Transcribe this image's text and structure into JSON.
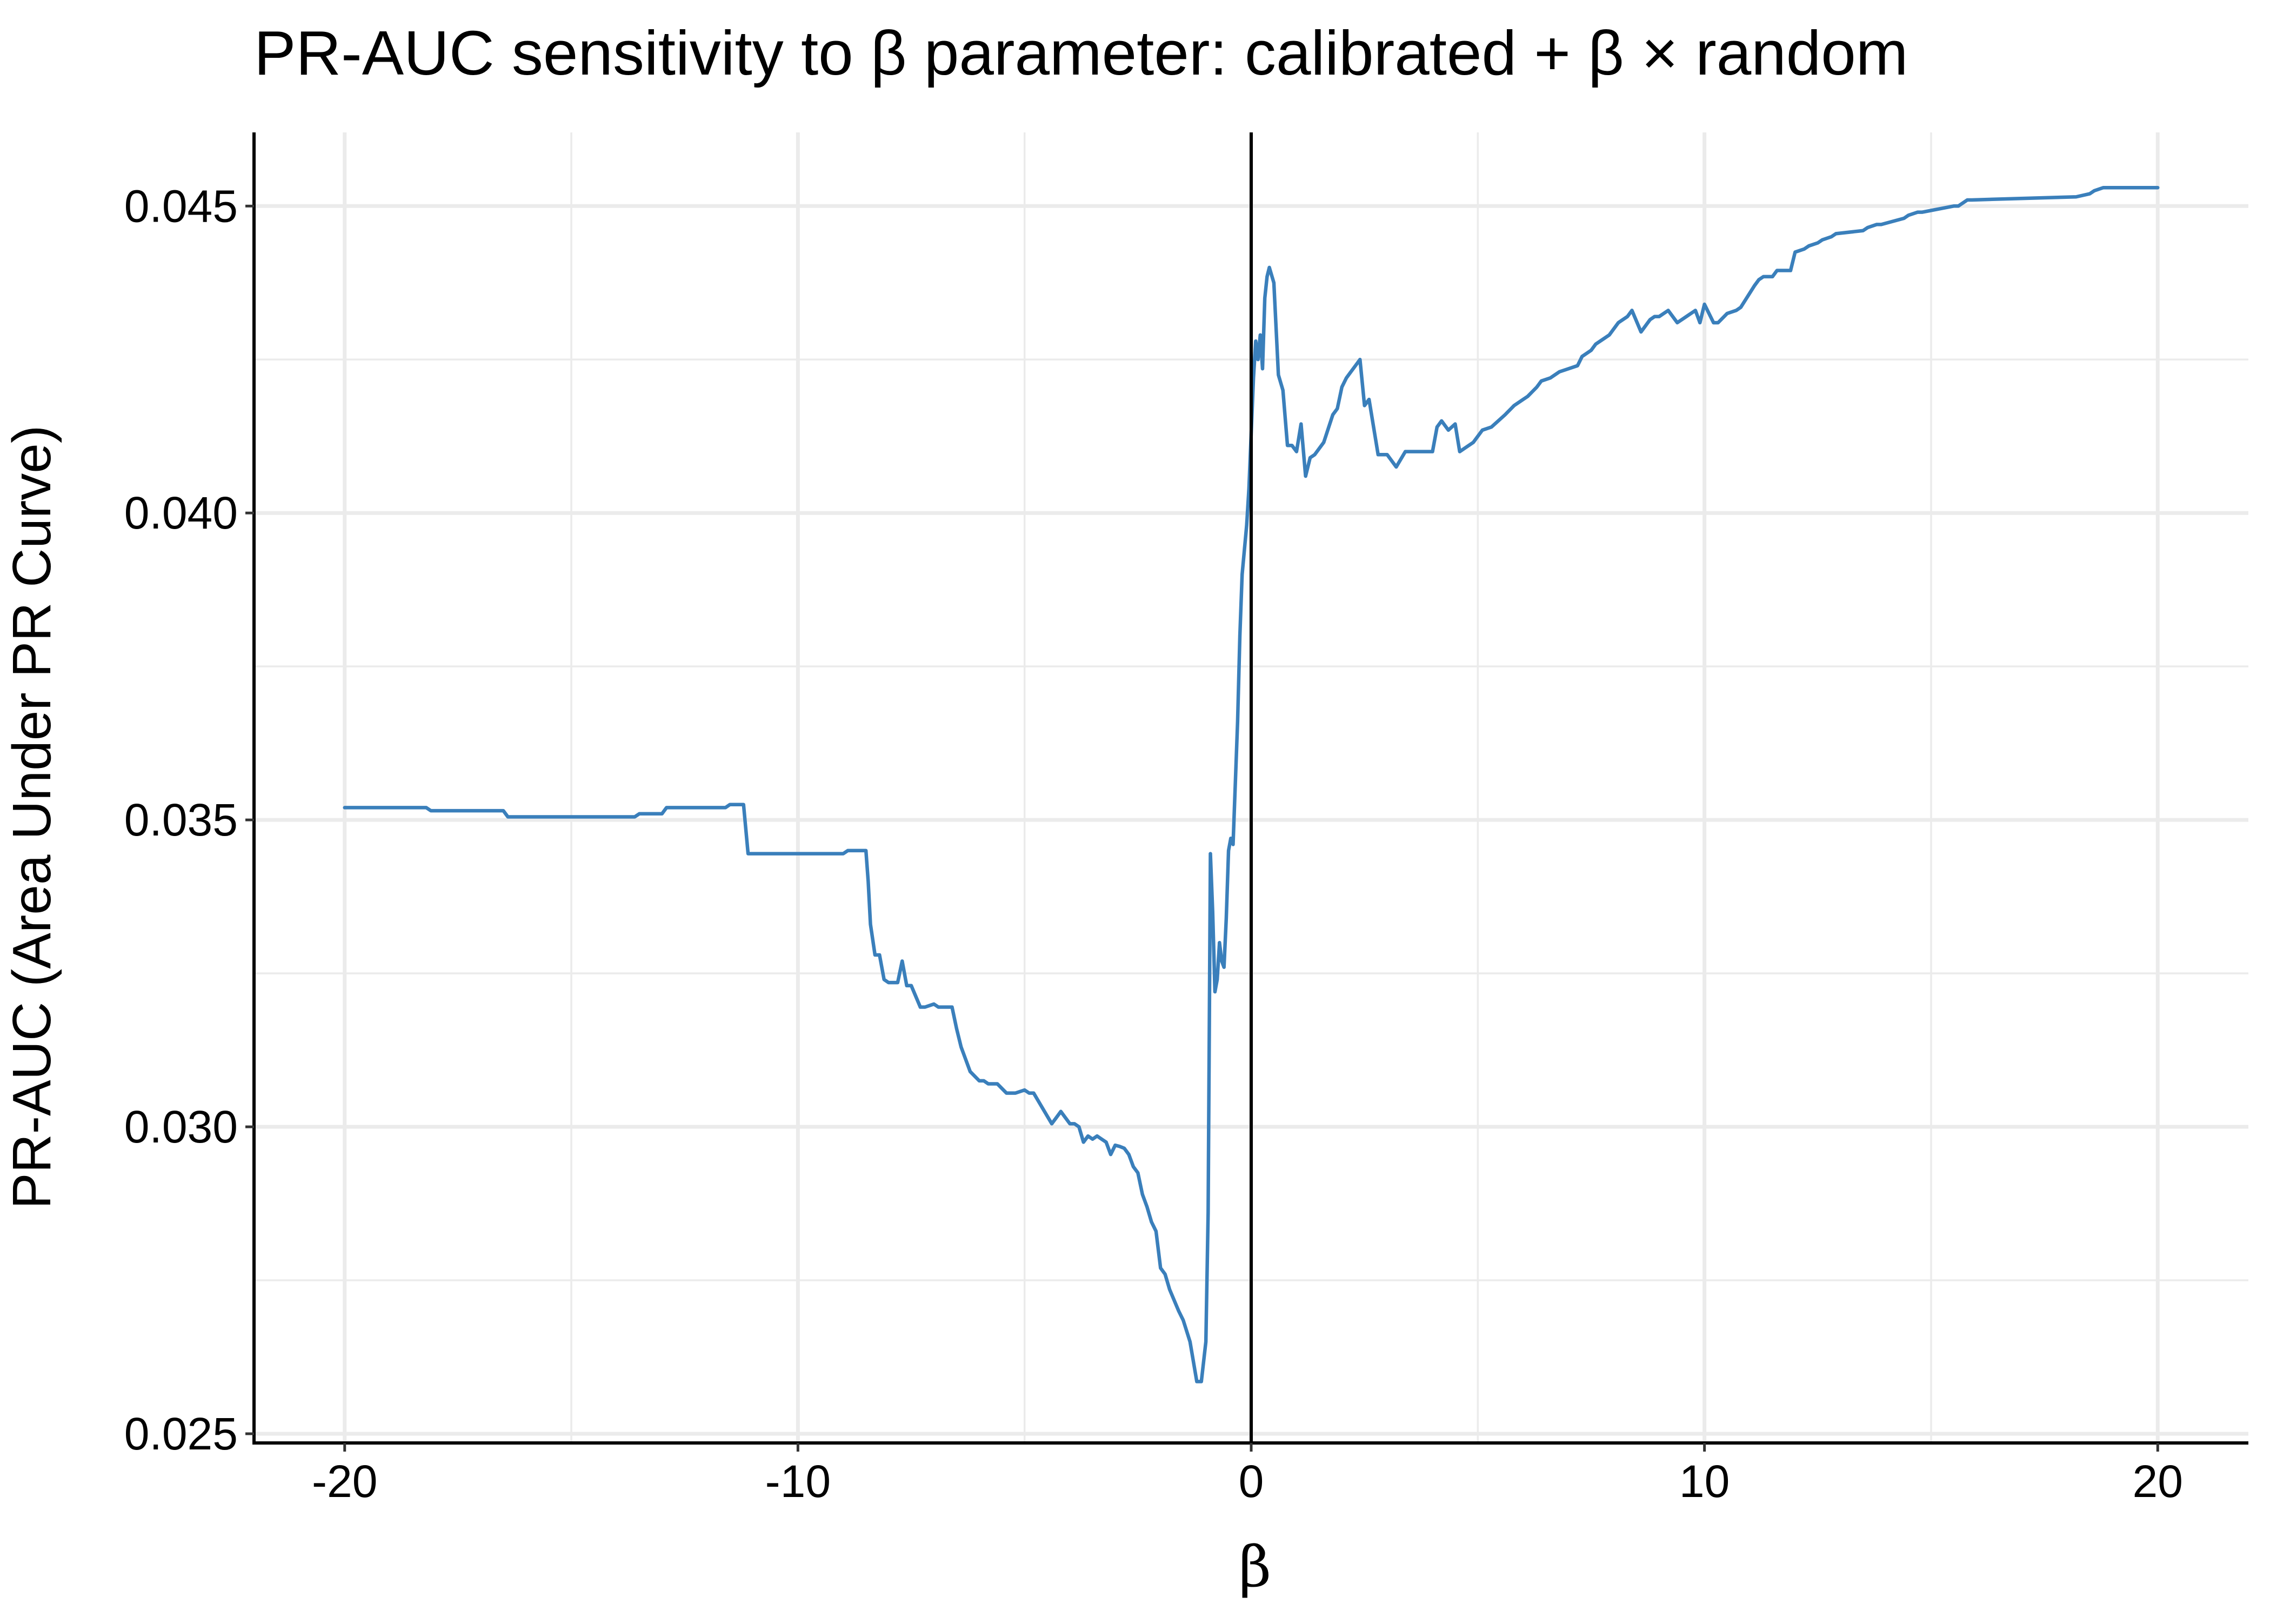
{
  "chart_data": {
    "type": "line",
    "title": "PR-AUC sensitivity to β parameter: calibrated + β × random",
    "xlabel": "β",
    "ylabel": "PR-AUC (Area Under PR Curve)",
    "xlim": [
      -22.0,
      22.0
    ],
    "ylim": [
      0.02485,
      0.0462
    ],
    "x_major_ticks": [
      -20,
      -10,
      0,
      10,
      20
    ],
    "x_tick_labels": [
      "-20",
      "-10",
      "0",
      "10",
      "20"
    ],
    "x_minor_ticks": [
      -15,
      -5,
      5,
      15
    ],
    "y_major_ticks": [
      0.025,
      0.03,
      0.035,
      0.04,
      0.045
    ],
    "y_tick_labels": [
      "0.025",
      "0.030",
      "0.035",
      "0.040",
      "0.045"
    ],
    "y_minor_ticks": [
      0.0275,
      0.0325,
      0.0375,
      0.0425
    ],
    "grid": true,
    "reference_line": {
      "orientation": "vertical",
      "x": 0,
      "color": "#000000"
    },
    "series": [
      {
        "color": "#3a7fbb",
        "x": [
          -20,
          -18.2,
          -18.1,
          -16.5,
          -16.4,
          -13.6,
          -13.5,
          -13.0,
          -12.9,
          -11.6,
          -11.5,
          -11.2,
          -11.1,
          -9.0,
          -8.9,
          -8.5,
          -8.45,
          -8.4,
          -8.3,
          -8.2,
          -8.1,
          -8.0,
          -7.8,
          -7.7,
          -7.6,
          -7.5,
          -7.3,
          -7.2,
          -7.0,
          -6.9,
          -6.7,
          -6.6,
          -6.5,
          -6.4,
          -6.2,
          -6.0,
          -5.9,
          -5.8,
          -5.6,
          -5.4,
          -5.2,
          -5.0,
          -4.9,
          -4.8,
          -4.6,
          -4.4,
          -4.3,
          -4.2,
          -4.1,
          -4.0,
          -3.9,
          -3.8,
          -3.7,
          -3.6,
          -3.5,
          -3.4,
          -3.3,
          -3.2,
          -3.1,
          -3.0,
          -2.9,
          -2.8,
          -2.7,
          -2.6,
          -2.5,
          -2.4,
          -2.3,
          -2.2,
          -2.1,
          -2.0,
          -1.9,
          -1.8,
          -1.6,
          -1.5,
          -1.35,
          -1.2,
          -1.1,
          -1.0,
          -0.95,
          -0.9,
          -0.85,
          -0.8,
          -0.75,
          -0.7,
          -0.65,
          -0.6,
          -0.55,
          -0.5,
          -0.45,
          -0.4,
          -0.35,
          -0.3,
          -0.25,
          -0.2,
          -0.1,
          -0.05,
          0.0,
          0.05,
          0.1,
          0.15,
          0.2,
          0.25,
          0.3,
          0.35,
          0.4,
          0.5,
          0.6,
          0.7,
          0.8,
          0.9,
          1.0,
          1.1,
          1.2,
          1.3,
          1.4,
          1.5,
          1.6,
          1.8,
          1.9,
          2.0,
          2.1,
          2.2,
          2.3,
          2.4,
          2.5,
          2.6,
          2.7,
          2.8,
          3.0,
          3.2,
          3.4,
          3.6,
          4.0,
          4.1,
          4.2,
          4.35,
          4.5,
          4.6,
          4.7,
          4.9,
          5.1,
          5.3,
          5.6,
          5.8,
          6.0,
          6.1,
          6.3,
          6.4,
          6.6,
          6.8,
          7.0,
          7.2,
          7.3,
          7.5,
          7.6,
          7.8,
          7.9,
          8.0,
          8.1,
          8.3,
          8.4,
          8.6,
          8.7,
          8.8,
          8.9,
          9.0,
          9.1,
          9.2,
          9.4,
          9.5,
          9.6,
          9.7,
          9.8,
          9.9,
          10.0,
          10.2,
          10.3,
          10.5,
          10.7,
          10.8,
          11.1,
          11.2,
          11.3,
          11.5,
          11.6,
          11.9,
          12.0,
          12.2,
          12.3,
          12.5,
          12.6,
          12.8,
          12.9,
          13.5,
          13.6,
          13.8,
          13.9,
          14.4,
          14.5,
          14.7,
          14.8,
          15.5,
          15.6,
          15.8,
          15.9,
          18.2,
          18.5,
          18.6,
          18.8,
          20.0
        ],
        "y": [
          0.0352,
          0.0352,
          0.03515,
          0.03515,
          0.03505,
          0.03505,
          0.0351,
          0.0351,
          0.0352,
          0.0352,
          0.03525,
          0.03525,
          0.03445,
          0.03445,
          0.0345,
          0.0345,
          0.034,
          0.0333,
          0.0328,
          0.0328,
          0.0324,
          0.03235,
          0.03235,
          0.0327,
          0.0323,
          0.0323,
          0.03195,
          0.03195,
          0.032,
          0.03195,
          0.03195,
          0.03195,
          0.0316,
          0.0313,
          0.0309,
          0.03075,
          0.03075,
          0.0307,
          0.0307,
          0.03055,
          0.03055,
          0.0306,
          0.03055,
          0.03055,
          0.0303,
          0.03005,
          0.03015,
          0.03025,
          0.03015,
          0.03005,
          0.03005,
          0.03,
          0.02975,
          0.02985,
          0.0298,
          0.02985,
          0.0298,
          0.02975,
          0.02955,
          0.0297,
          0.02968,
          0.02965,
          0.02955,
          0.02935,
          0.02925,
          0.0289,
          0.0287,
          0.02845,
          0.0283,
          0.0277,
          0.0276,
          0.02735,
          0.027,
          0.02685,
          0.0265,
          0.02585,
          0.02585,
          0.0265,
          0.0286,
          0.03445,
          0.0335,
          0.0322,
          0.0324,
          0.033,
          0.0327,
          0.0326,
          0.0334,
          0.0345,
          0.0347,
          0.0346,
          0.0356,
          0.0366,
          0.038,
          0.039,
          0.0398,
          0.0404,
          0.0413,
          0.0422,
          0.0428,
          0.0425,
          0.0429,
          0.04235,
          0.0435,
          0.04385,
          0.044,
          0.04375,
          0.04225,
          0.042,
          0.0411,
          0.0411,
          0.041,
          0.04145,
          0.0406,
          0.0409,
          0.04095,
          0.04105,
          0.04115,
          0.0416,
          0.0417,
          0.04205,
          0.0422,
          0.0423,
          0.0424,
          0.0425,
          0.04175,
          0.04185,
          0.0414,
          0.04095,
          0.04095,
          0.04075,
          0.041,
          0.041,
          0.041,
          0.0414,
          0.0415,
          0.04135,
          0.04145,
          0.041,
          0.04105,
          0.04115,
          0.04135,
          0.0414,
          0.0416,
          0.04175,
          0.04185,
          0.0419,
          0.04205,
          0.04215,
          0.0422,
          0.0423,
          0.04235,
          0.0424,
          0.04255,
          0.04265,
          0.04275,
          0.04285,
          0.0429,
          0.043,
          0.0431,
          0.0432,
          0.0433,
          0.04295,
          0.04305,
          0.04315,
          0.0432,
          0.0432,
          0.04325,
          0.0433,
          0.0431,
          0.04315,
          0.0432,
          0.04325,
          0.0433,
          0.0431,
          0.0434,
          0.0431,
          0.0431,
          0.04325,
          0.0433,
          0.04335,
          0.0437,
          0.0438,
          0.04385,
          0.04385,
          0.04395,
          0.04395,
          0.04425,
          0.0443,
          0.04435,
          0.0444,
          0.04445,
          0.0445,
          0.04455,
          0.0446,
          0.04465,
          0.0447,
          0.0447,
          0.0448,
          0.04485,
          0.0449,
          0.0449,
          0.045,
          0.045,
          0.0451,
          0.0451,
          0.04515,
          0.0452,
          0.04525,
          0.0453,
          0.0453
        ]
      }
    ]
  }
}
